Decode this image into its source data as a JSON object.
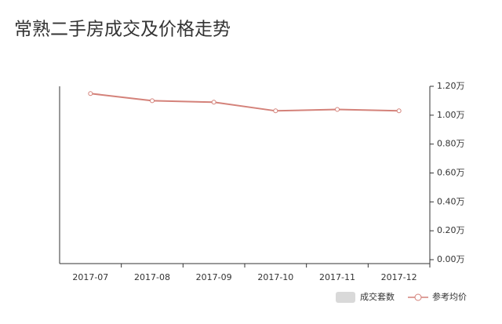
{
  "chart_data": {
    "type": "line",
    "title": "常熟二手房成交及价格走势",
    "categories": [
      "2017-07",
      "2017-08",
      "2017-09",
      "2017-10",
      "2017-11",
      "2017-12"
    ],
    "series": [
      {
        "name": "成交套数",
        "color": "#d9d9d9",
        "values": [
          null,
          null,
          null,
          null,
          null,
          null
        ]
      },
      {
        "name": "参考均价",
        "color": "#d4827a",
        "axis": "y2",
        "values": [
          1.15,
          1.1,
          1.09,
          1.03,
          1.04,
          1.03
        ]
      }
    ],
    "y2lim": [
      0,
      1.2
    ],
    "y2ticks": [
      {
        "value": 0,
        "label": "0.00万"
      },
      {
        "value": 0.2,
        "label": "0.20万"
      },
      {
        "value": 0.4,
        "label": "0.40万"
      },
      {
        "value": 0.6,
        "label": "0.60万"
      },
      {
        "value": 0.8,
        "label": "0.80万"
      },
      {
        "value": 1.0,
        "label": "1.00万"
      },
      {
        "value": 1.2,
        "label": "1.20万"
      }
    ]
  }
}
